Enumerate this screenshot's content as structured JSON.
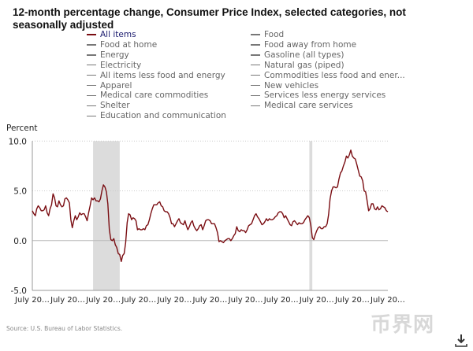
{
  "title": "12-month percentage change, Consumer Price Index, selected categories, not seasonally adjusted",
  "legend": {
    "left": [
      "All items",
      "Food at home",
      "Energy",
      "Electricity",
      "All items less food and energy",
      "Apparel",
      "Medical care commodities",
      "Shelter",
      "Education and communication"
    ],
    "right": [
      "Food",
      "Food away from home",
      "Gasoline (all types)",
      "Natural gas (piped)",
      "Commodities less food and ener...",
      "New vehicles",
      "Services less energy services",
      "Medical care services"
    ],
    "active": "All items"
  },
  "source": "Source: U.S. Bureau of Labor Statistics.",
  "watermark": "币界网",
  "icons": {
    "download": "download-icon"
  },
  "colors": {
    "series": "#7a0d12",
    "recession": "#dcdcdc",
    "grid": "#cccccc",
    "active_legend_text": "#1a1a6e"
  },
  "chart_data": {
    "type": "line",
    "title": "12-month percentage change, Consumer Price Index, selected categories, not seasonally adjusted",
    "ylabel": "Percent",
    "xlabel": "",
    "ylim": [
      -5,
      10
    ],
    "yticks": [
      "10.0",
      "5.0",
      "0.0",
      "-5.0"
    ],
    "ytick_values": [
      10,
      5,
      0,
      -5
    ],
    "xlim": [
      "2004-07",
      "2024-07"
    ],
    "xtick_labels": [
      "July 20…",
      "July 20…",
      "July 20…",
      "July 20…",
      "July 20…",
      "July 20…",
      "July 20…",
      "July 20…",
      "July 20…",
      "July 20…",
      "July 20…"
    ],
    "xtick_dates": [
      "2004-07",
      "2006-07",
      "2008-07",
      "2010-07",
      "2012-07",
      "2014-07",
      "2016-07",
      "2018-07",
      "2020-07",
      "2022-07",
      "2024-07"
    ],
    "grid": "horizontal dotted at 5 and 10",
    "recessions": [
      [
        "2007-12",
        "2009-06"
      ],
      [
        "2020-02",
        "2020-04"
      ]
    ],
    "series": [
      {
        "name": "All items",
        "frequency": "monthly",
        "values_by_year": {
          "2004": [
            null,
            null,
            null,
            null,
            null,
            null,
            3.0,
            2.7,
            2.5,
            3.2,
            3.5,
            3.3
          ],
          "2005": [
            3.0,
            3.0,
            3.1,
            3.5,
            2.8,
            2.5,
            3.2,
            3.6,
            4.7,
            4.3,
            3.5,
            3.4
          ],
          "2006": [
            4.0,
            3.6,
            3.4,
            3.5,
            4.2,
            4.3,
            4.1,
            3.8,
            2.1,
            1.3,
            2.0,
            2.5
          ],
          "2007": [
            2.1,
            2.4,
            2.8,
            2.6,
            2.7,
            2.7,
            2.4,
            2.0,
            2.8,
            3.5,
            4.3,
            4.1
          ],
          "2008": [
            4.3,
            4.0,
            4.0,
            3.9,
            4.2,
            5.0,
            5.6,
            5.4,
            4.9,
            3.7,
            1.1,
            0.1
          ],
          "2009": [
            0.0,
            0.2,
            -0.4,
            -0.7,
            -1.3,
            -1.4,
            -2.1,
            -1.5,
            -1.3,
            -0.2,
            1.8,
            2.7
          ],
          "2010": [
            2.6,
            2.1,
            2.3,
            2.2,
            2.0,
            1.1,
            1.2,
            1.1,
            1.1,
            1.2,
            1.1,
            1.5
          ],
          "2011": [
            1.6,
            2.1,
            2.7,
            3.2,
            3.6,
            3.6,
            3.6,
            3.8,
            3.9,
            3.5,
            3.4,
            3.0
          ],
          "2012": [
            2.9,
            2.9,
            2.7,
            2.3,
            1.7,
            1.7,
            1.4,
            1.7,
            2.0,
            2.2,
            1.8,
            1.7
          ],
          "2013": [
            1.6,
            2.0,
            1.5,
            1.1,
            1.4,
            1.8,
            2.0,
            1.5,
            1.2,
            1.0,
            1.2,
            1.5
          ],
          "2014": [
            1.6,
            1.1,
            1.5,
            2.0,
            2.1,
            2.1,
            2.0,
            1.7,
            1.7,
            1.7,
            1.3,
            0.8
          ],
          "2015": [
            -0.1,
            0.0,
            -0.1,
            -0.2,
            0.0,
            0.1,
            0.2,
            0.2,
            0.0,
            0.2,
            0.5,
            0.7
          ],
          "2016": [
            1.4,
            1.0,
            0.9,
            1.1,
            1.0,
            1.0,
            0.8,
            1.1,
            1.5,
            1.6,
            1.7,
            2.1
          ],
          "2017": [
            2.5,
            2.7,
            2.4,
            2.2,
            1.9,
            1.6,
            1.7,
            1.9,
            2.2,
            2.0,
            2.2,
            2.1
          ],
          "2018": [
            2.1,
            2.2,
            2.4,
            2.5,
            2.8,
            2.9,
            2.9,
            2.7,
            2.3,
            2.5,
            2.2,
            1.9
          ],
          "2019": [
            1.6,
            1.5,
            1.9,
            2.0,
            1.8,
            1.6,
            1.8,
            1.7,
            1.7,
            1.8,
            2.1,
            2.3
          ],
          "2020": [
            2.5,
            2.3,
            1.5,
            0.3,
            0.1,
            0.6,
            1.0,
            1.3,
            1.4,
            1.2,
            1.2,
            1.4
          ],
          "2021": [
            1.4,
            1.7,
            2.6,
            4.2,
            5.0,
            5.4,
            5.4,
            5.3,
            5.4,
            6.2,
            6.8,
            7.0
          ],
          "2022": [
            7.5,
            7.9,
            8.5,
            8.3,
            8.6,
            9.1,
            8.5,
            8.3,
            8.2,
            7.7,
            7.1,
            6.5
          ],
          "2023": [
            6.4,
            6.0,
            5.0,
            4.9,
            4.0,
            3.0,
            3.2,
            3.7,
            3.7,
            3.2,
            3.1,
            3.4
          ],
          "2024": [
            3.1,
            3.2,
            3.5,
            3.4,
            3.3,
            3.0,
            2.9,
            null,
            null,
            null,
            null,
            null
          ]
        }
      }
    ]
  }
}
